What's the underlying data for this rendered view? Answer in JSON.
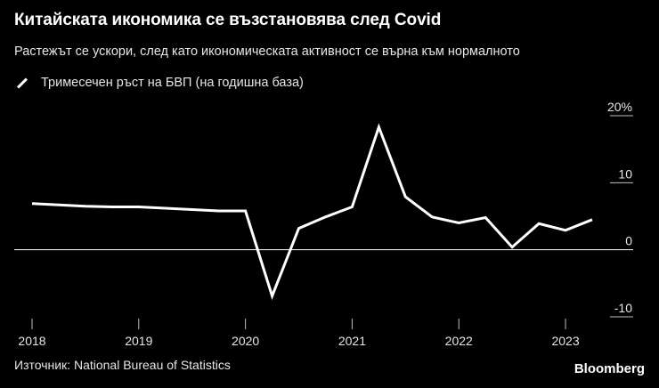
{
  "header": {
    "title": "Китайската икономика се възстановява след Covid",
    "subtitle": "Растежът се ускори, след като икономическата активност се върна към нормалното"
  },
  "footer": {
    "source": "Източник: National Bureau of Statistics",
    "brand": "Bloomberg"
  },
  "chart_data": {
    "type": "line",
    "legend_position": "top-left",
    "grid": false,
    "xlim": [
      2018.0,
      2023.25
    ],
    "ylim": [
      -10,
      20
    ],
    "x_ticks": [
      {
        "value": 2018,
        "label": "2018"
      },
      {
        "value": 2019,
        "label": "2019"
      },
      {
        "value": 2020,
        "label": "2020"
      },
      {
        "value": 2021,
        "label": "2021"
      },
      {
        "value": 2022,
        "label": "2022"
      },
      {
        "value": 2023,
        "label": "2023"
      }
    ],
    "y_ticks": [
      {
        "value": 20,
        "label": "20%"
      },
      {
        "value": 10,
        "label": "10"
      },
      {
        "value": 0,
        "label": "0"
      },
      {
        "value": -10,
        "label": "-10"
      }
    ],
    "series": [
      {
        "name": "Тримесечен ръст на БВП (на годишна база)",
        "color": "#ffffff",
        "x": [
          2018.0,
          2018.25,
          2018.5,
          2018.75,
          2019.0,
          2019.25,
          2019.5,
          2019.75,
          2020.0,
          2020.25,
          2020.5,
          2020.75,
          2021.0,
          2021.25,
          2021.5,
          2021.75,
          2022.0,
          2022.25,
          2022.5,
          2022.75,
          2023.0,
          2023.25
        ],
        "y": [
          6.9,
          6.7,
          6.5,
          6.4,
          6.4,
          6.2,
          6.0,
          5.8,
          5.8,
          -6.9,
          3.2,
          4.9,
          6.4,
          18.3,
          7.9,
          4.9,
          4.0,
          4.8,
          0.4,
          3.9,
          2.9,
          4.5
        ]
      }
    ]
  }
}
